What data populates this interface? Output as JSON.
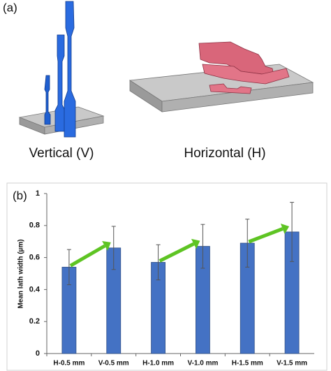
{
  "panel_a": {
    "label": "(a)",
    "captions": [
      "Vertical (V)",
      "Horizontal (H)"
    ]
  },
  "chart_data": {
    "type": "bar",
    "panel_label": "(b)",
    "y_label": "Mean lath width (µm)",
    "categories": [
      "H-0.5 mm",
      "V-0.5 mm",
      "H-1.0 mm",
      "V-1.0 mm",
      "H-1.5 mm",
      "V-1.5 mm"
    ],
    "values": [
      0.54,
      0.66,
      0.57,
      0.67,
      0.69,
      0.76
    ],
    "errors": [
      0.11,
      0.135,
      0.11,
      0.137,
      0.15,
      0.185
    ],
    "color": "#4472c4",
    "ylim": [
      0,
      1
    ],
    "yticks": [
      0,
      0.2,
      0.4,
      0.6,
      0.8,
      1
    ],
    "grid": false
  }
}
